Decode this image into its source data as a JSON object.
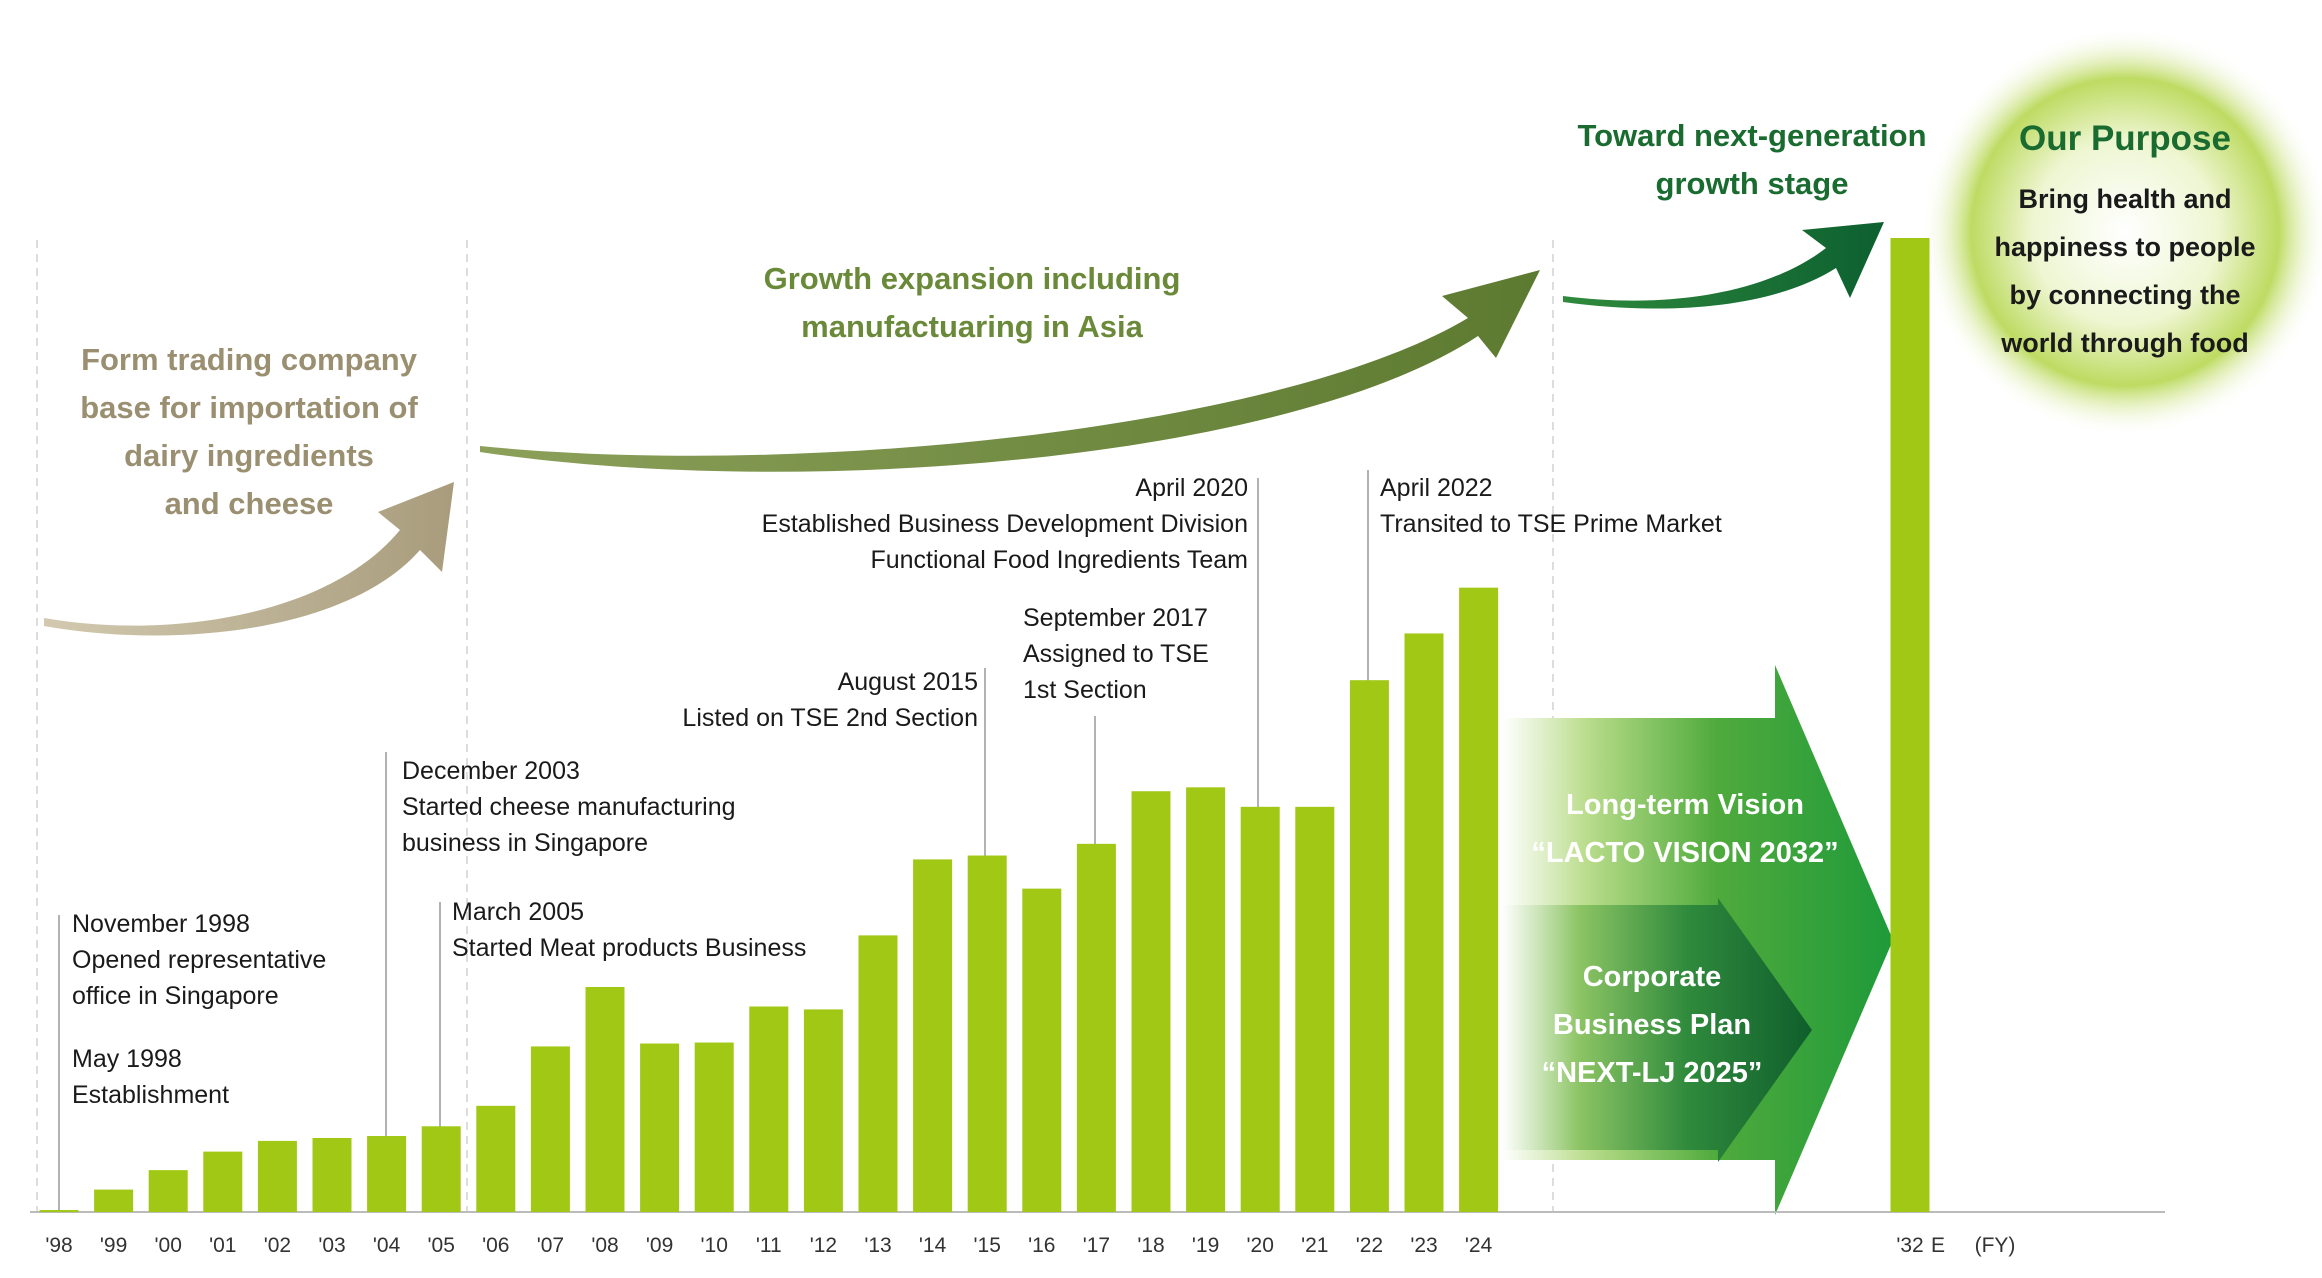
{
  "chart_data": {
    "type": "bar",
    "categories": [
      "'98",
      "'99",
      "'00",
      "'01",
      "'02",
      "'03",
      "'04",
      "'05",
      "'06",
      "'07",
      "'08",
      "'09",
      "'10",
      "'11",
      "'12",
      "'13",
      "'14",
      "'15",
      "'16",
      "'17",
      "'18",
      "'19",
      "'20",
      "'21",
      "'22",
      "'23",
      "'24",
      "'32"
    ],
    "values": [
      0.2,
      2.3,
      4.3,
      6.2,
      7.3,
      7.6,
      7.8,
      8.8,
      10.9,
      17.0,
      23.1,
      17.3,
      17.4,
      21.1,
      20.8,
      28.4,
      36.2,
      36.6,
      33.2,
      37.8,
      43.2,
      43.6,
      41.6,
      41.6,
      54.6,
      59.4,
      64.1,
      100.0
    ],
    "x_unit": "(FY)",
    "estimate_marker": "E",
    "ylim": [
      0,
      100
    ],
    "grid": false,
    "bar_color": "#a0c814"
  },
  "stages": [
    {
      "lines": [
        "Form trading company",
        "base for importation of",
        "dairy ingredients",
        "and cheese"
      ],
      "color": "#9a8f70"
    },
    {
      "lines": [
        "Growth expansion including",
        "manufactuaring in Asia"
      ],
      "color": "#6a8a3a"
    },
    {
      "lines": [
        "Toward next-generation",
        "growth stage"
      ],
      "color": "#1a6b30"
    }
  ],
  "purpose": {
    "title": "Our Purpose",
    "lines": [
      "Bring health and",
      "happiness to people",
      "by connecting the",
      "world through food"
    ],
    "title_color": "#1a6b30"
  },
  "vision": {
    "lines": [
      "Long-term Vision",
      "“LACTO VISION 2032”"
    ]
  },
  "plan": {
    "lines": [
      "Corporate",
      "Business Plan",
      "“NEXT-LJ 2025”"
    ]
  },
  "milestones": [
    {
      "lines": [
        "May 1998",
        "Establishment"
      ]
    },
    {
      "lines": [
        "November 1998",
        "Opened representative",
        "office in Singapore"
      ]
    },
    {
      "lines": [
        "December 2003",
        "Started cheese manufacturing",
        "business in Singapore"
      ]
    },
    {
      "lines": [
        "March 2005",
        "Started Meat products Business"
      ]
    },
    {
      "lines": [
        "August 2015",
        "Listed on TSE 2nd Section"
      ]
    },
    {
      "lines": [
        "September 2017",
        "Assigned to TSE",
        "1st Section"
      ]
    },
    {
      "lines": [
        "April 2020",
        "Established Business Development Division",
        "Functional Food Ingredients Team"
      ]
    },
    {
      "lines": [
        "April 2022",
        "Transited to TSE Prime Market"
      ]
    }
  ]
}
